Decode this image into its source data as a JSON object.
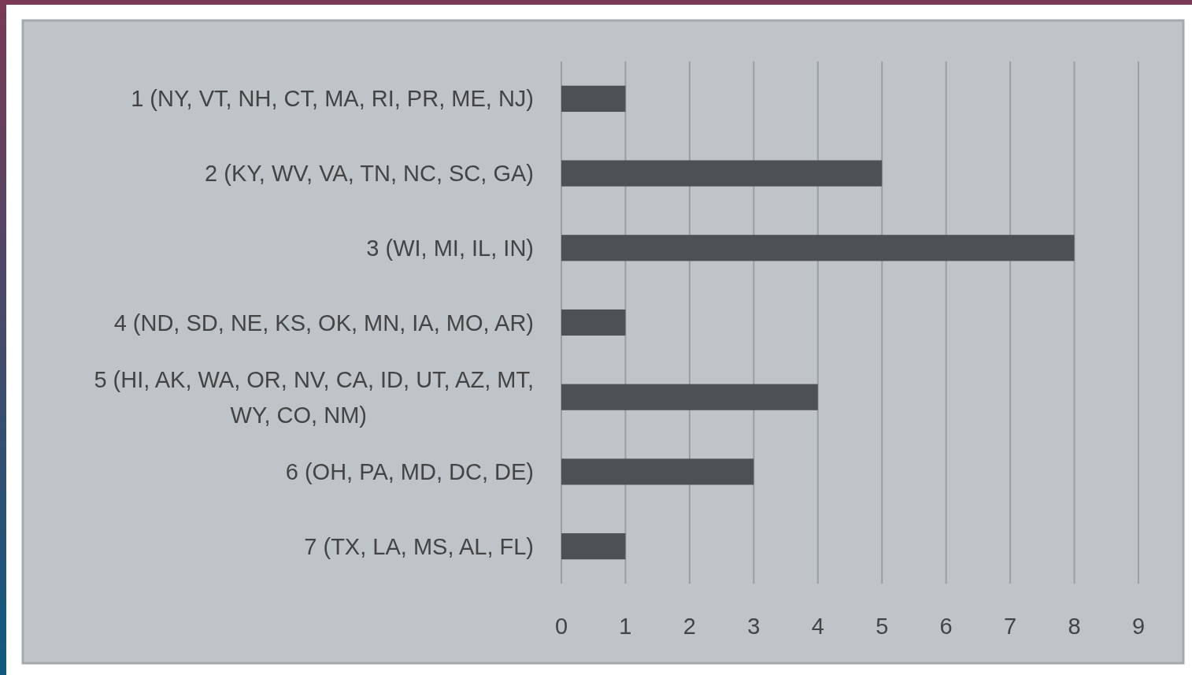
{
  "chart_data": {
    "type": "bar",
    "orientation": "horizontal",
    "categories": [
      "1 (NY, VT, NH, CT, MA, RI, PR, ME, NJ)",
      "2 (KY, WV, VA, TN, NC, SC, GA)",
      "3 (WI, MI, IL, IN)",
      "4 (ND, SD, NE, KS, OK, MN, IA, MO, AR)",
      "5 (HI, AK, WA, OR, NV, CA, ID, UT, AZ, MT, WY, CO, NM)",
      "6 (OH, PA, MD, DC, DE)",
      "7 (TX, LA, MS, AL, FL)"
    ],
    "values": [
      1,
      5,
      8,
      1,
      4,
      3,
      1
    ],
    "color": "#4d5155",
    "xlim": [
      0,
      9
    ],
    "xticks": [
      0,
      1,
      2,
      3,
      4,
      5,
      6,
      7,
      8,
      9
    ],
    "grid": "x"
  }
}
